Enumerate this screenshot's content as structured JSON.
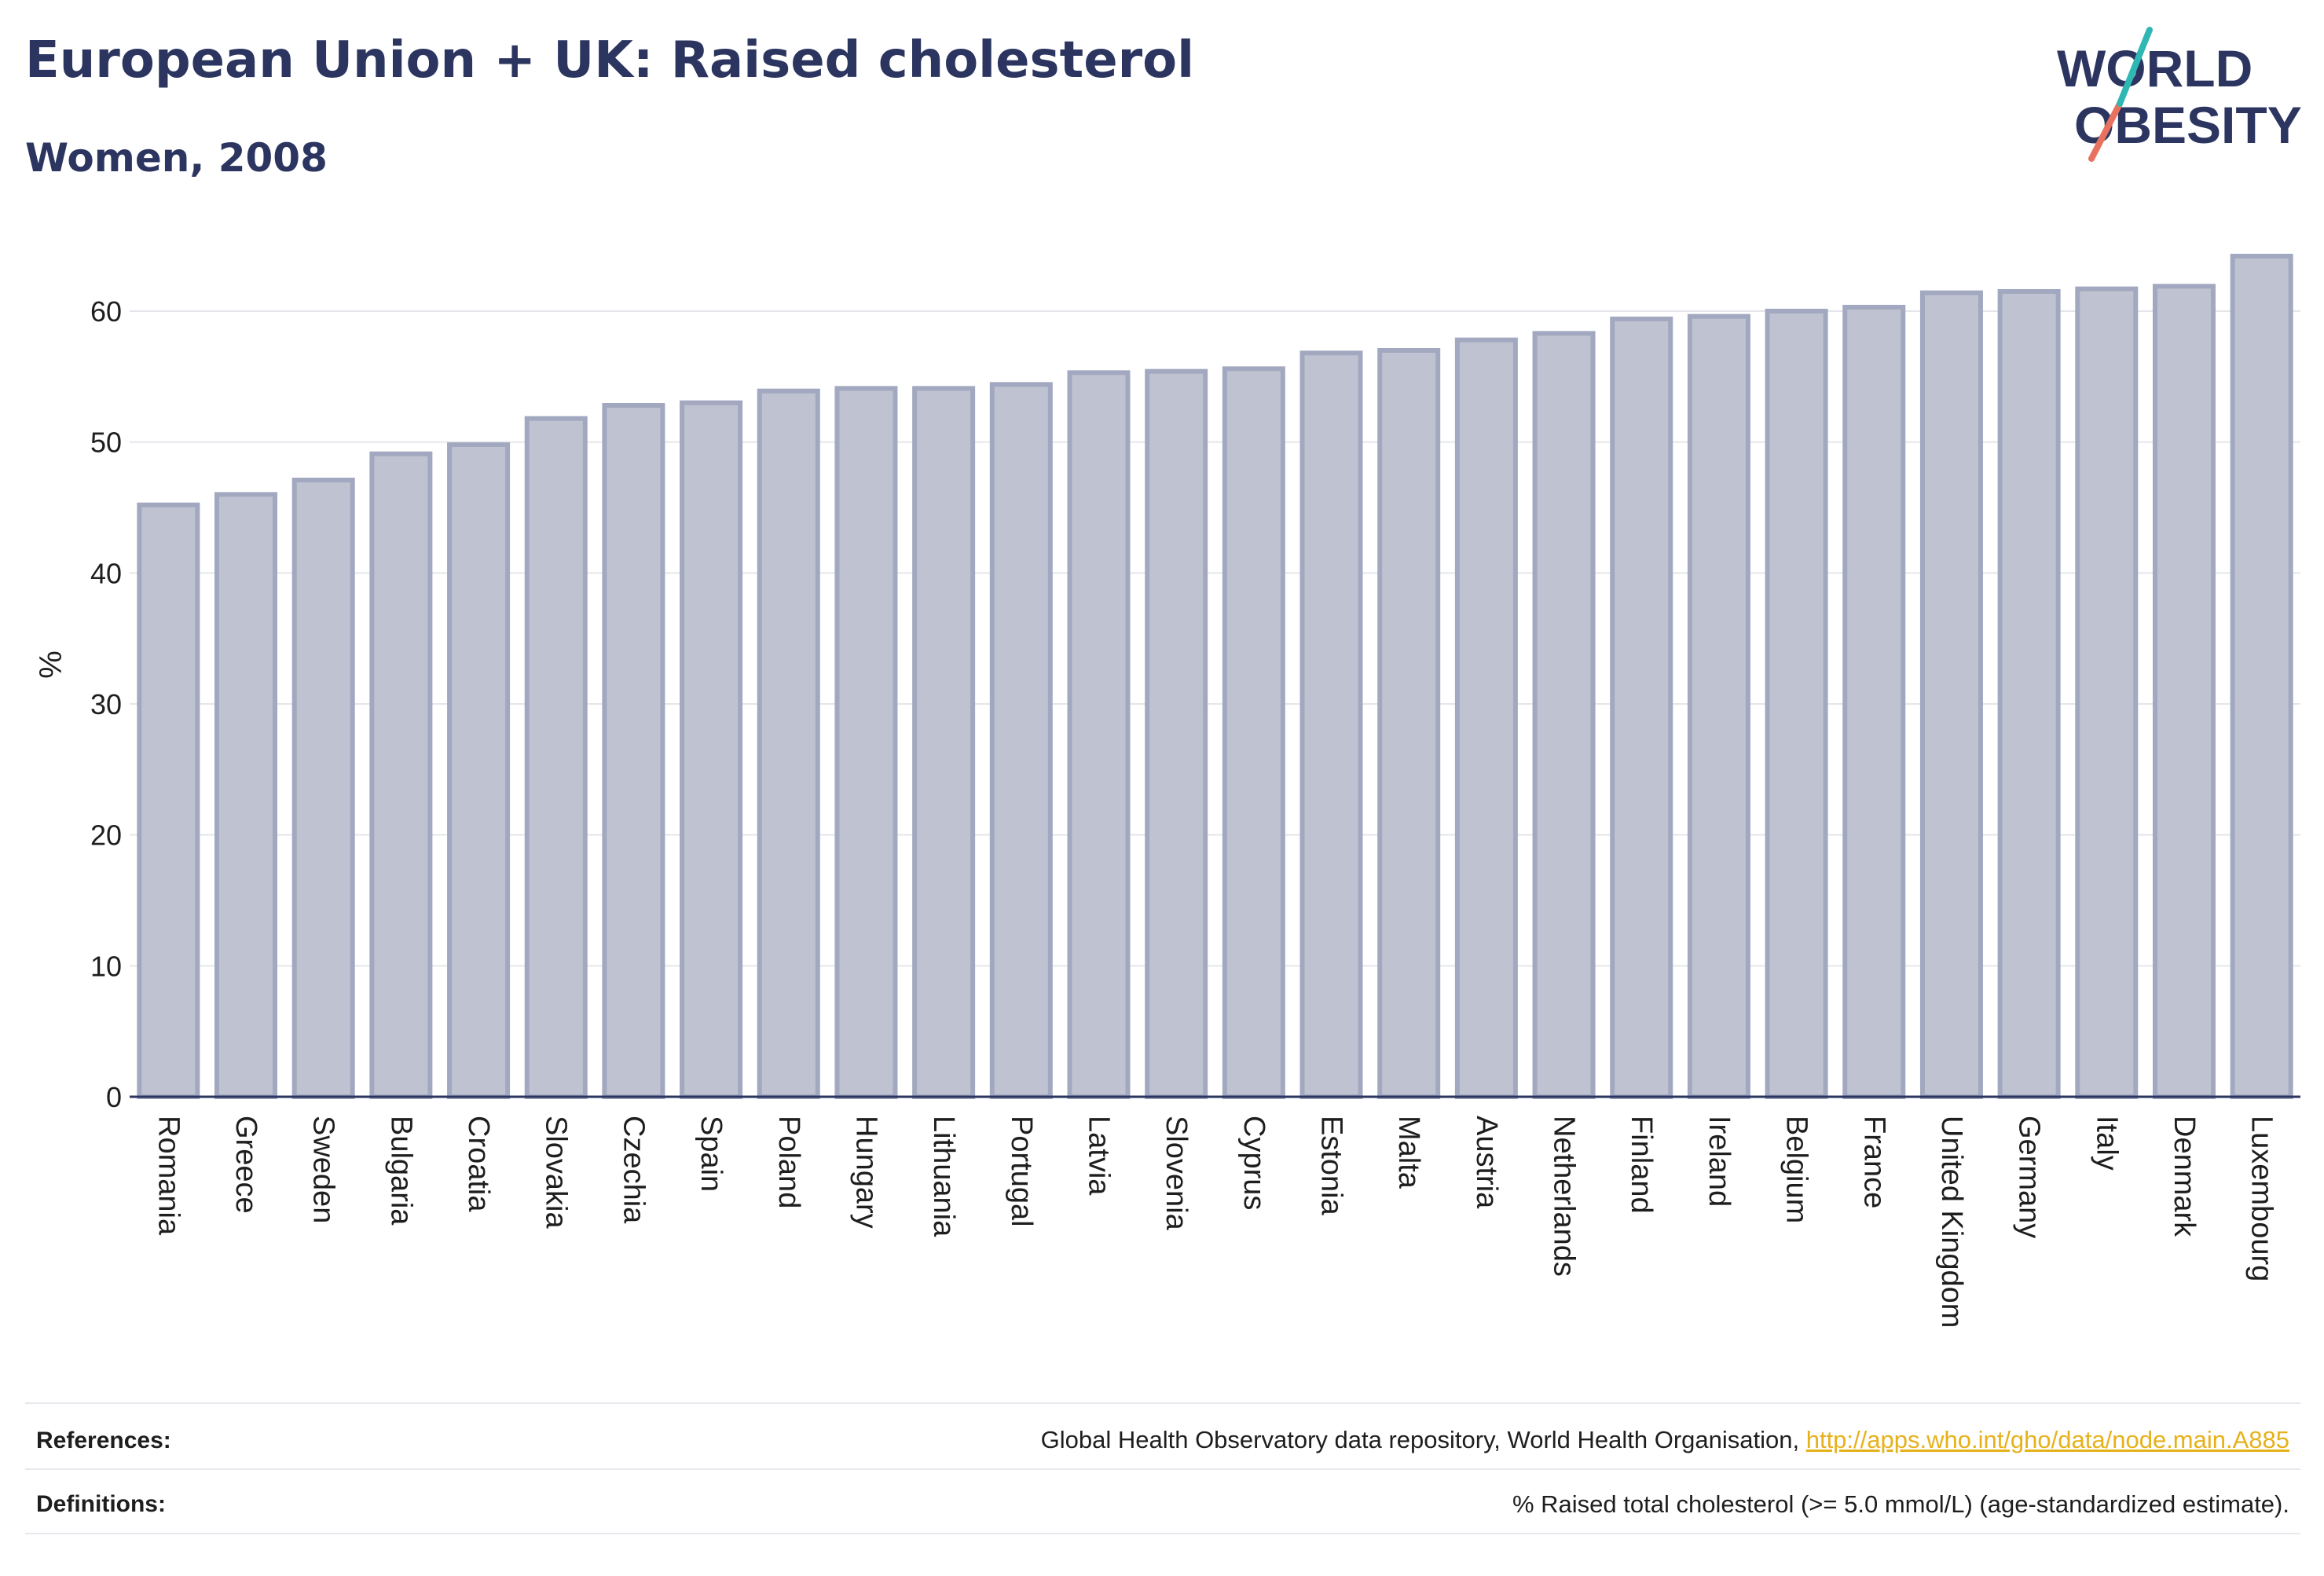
{
  "title": "European Union + UK: Raised cholesterol",
  "subtitle": "Women, 2008",
  "logo": {
    "line1": "WORLD",
    "line2": "OBESITY"
  },
  "chart_data": {
    "type": "bar",
    "ylabel": "%",
    "ylim": [
      0,
      66
    ],
    "yticks": [
      0,
      10,
      20,
      30,
      40,
      50,
      60
    ],
    "grid": true,
    "categories": [
      "Romania",
      "Greece",
      "Sweden",
      "Bulgaria",
      "Croatia",
      "Slovakia",
      "Czechia",
      "Spain",
      "Poland",
      "Hungary",
      "Lithuania",
      "Portugal",
      "Latvia",
      "Slovenia",
      "Cyprus",
      "Estonia",
      "Malta",
      "Austria",
      "Netherlands",
      "Finland",
      "Ireland",
      "Belgium",
      "France",
      "United Kingdom",
      "Germany",
      "Italy",
      "Denmark",
      "Luxembourg"
    ],
    "values": [
      45.2,
      46.0,
      47.1,
      49.1,
      49.8,
      51.8,
      52.8,
      53.0,
      53.9,
      54.1,
      54.1,
      54.4,
      55.3,
      55.4,
      55.6,
      56.8,
      57.0,
      57.8,
      58.3,
      59.4,
      59.6,
      60.0,
      60.3,
      61.4,
      61.5,
      61.7,
      61.9,
      64.2
    ],
    "bar_color": "#bfc3d1",
    "bar_edge": "#a2a8bf"
  },
  "footer": {
    "references_label": "References:",
    "references_text": "Global Health Observatory data repository, World Health Organisation, ",
    "references_link": "http://apps.who.int/gho/data/node.main.A885",
    "definitions_label": "Definitions:",
    "definitions_text": "% Raised total cholesterol (>= 5.0 mmol/L) (age-standardized estimate)."
  }
}
